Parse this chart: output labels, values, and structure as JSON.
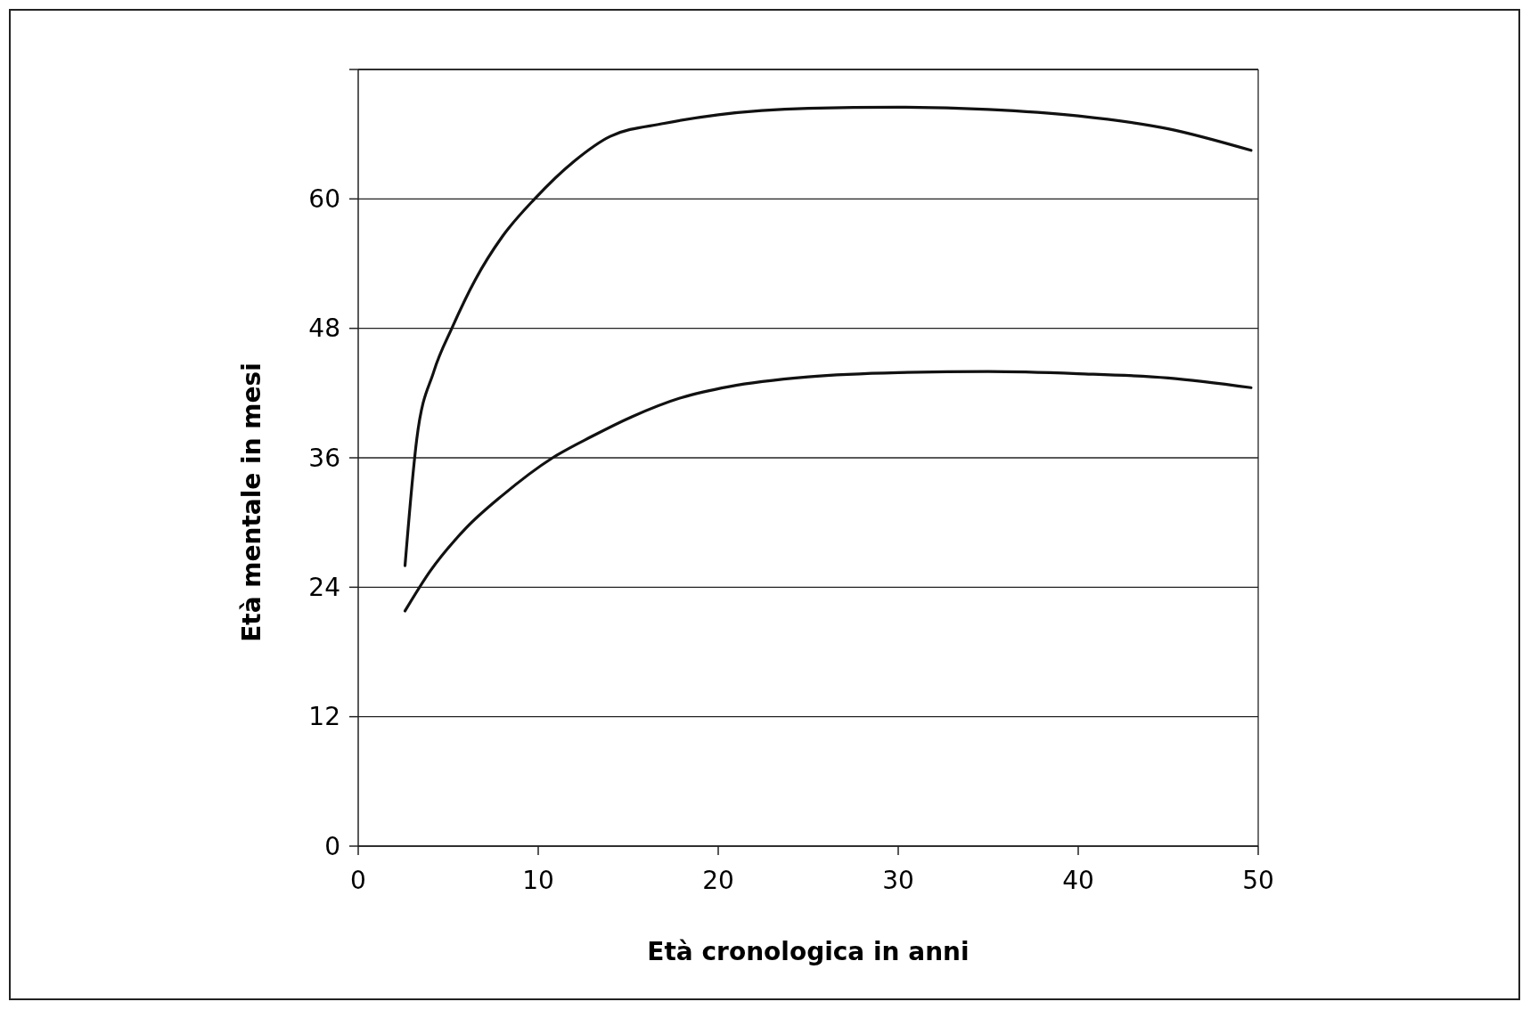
{
  "chart_data": {
    "type": "line",
    "xlabel": "Età cronologica in anni",
    "ylabel": "Età mentale in mesi",
    "xlim": [
      0,
      50
    ],
    "xticks": [
      0,
      10,
      20,
      30,
      40,
      50
    ],
    "ylim": [
      0,
      72
    ],
    "yticks": [
      0,
      12,
      24,
      36,
      48,
      60,
      {
        "value": 72,
        "label": null
      }
    ],
    "grid": "y",
    "marker": "none",
    "line_style": "solid",
    "series": [
      {
        "color": "#111111",
        "x": [
          2.6,
          3.25,
          4.2,
          5.2,
          6.5,
          8,
          9.8,
          12,
          14,
          17,
          20,
          25,
          30,
          35,
          40,
          45,
          49.6
        ],
        "values": [
          26,
          37.7,
          44,
          48,
          52.5,
          56.5,
          60,
          63.5,
          65.8,
          67,
          67.8,
          68.4,
          68.5,
          68.3,
          67.7,
          66.5,
          64.5
        ]
      },
      {
        "color": "#111111",
        "x": [
          2.6,
          4,
          6,
          8,
          10.8,
          13,
          15.2,
          18,
          20.6,
          25,
          30,
          35,
          40,
          45,
          49.6
        ],
        "values": [
          21.8,
          25.5,
          29.5,
          32.5,
          36,
          38,
          39.8,
          41.6,
          42.6,
          43.5,
          43.9,
          44,
          43.8,
          43.4,
          42.5
        ]
      }
    ]
  }
}
